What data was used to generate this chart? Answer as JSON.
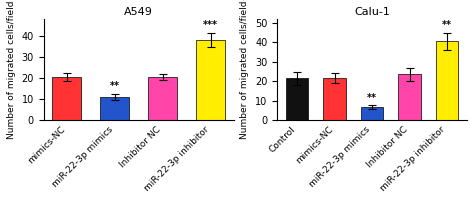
{
  "a549_title": "A549",
  "a549_categories": [
    "mimics-NC",
    "miR-22-3p mimics",
    "Inhibitor NC",
    "miR-22-3p inhibitor"
  ],
  "a549_values": [
    20.5,
    11.0,
    20.5,
    38.0
  ],
  "a549_errors": [
    2.0,
    1.5,
    1.5,
    3.5
  ],
  "a549_colors": [
    "#FF3333",
    "#2255CC",
    "#FF44AA",
    "#FFEE00"
  ],
  "a549_sig": [
    "",
    "**",
    "",
    "***"
  ],
  "a549_ylabel": "Number of migrated cells/field",
  "a549_ylim": [
    0,
    48
  ],
  "a549_yticks": [
    0,
    10,
    20,
    30,
    40
  ],
  "calu1_title": "Calu-1",
  "calu1_categories": [
    "Control",
    "mimics-NC",
    "miR-22-3p mimics",
    "Inhibitor NC",
    "miR-22-3p inhibitor"
  ],
  "calu1_values": [
    21.5,
    21.5,
    6.5,
    23.5,
    40.5
  ],
  "calu1_errors": [
    3.5,
    2.5,
    1.0,
    3.5,
    4.5
  ],
  "calu1_colors": [
    "#111111",
    "#FF3333",
    "#2255CC",
    "#FF44AA",
    "#FFEE00"
  ],
  "calu1_sig": [
    "",
    "",
    "**",
    "",
    "**"
  ],
  "calu1_ylabel": "Number of migrated cells/field",
  "calu1_ylim": [
    0,
    52
  ],
  "calu1_yticks": [
    0,
    10,
    20,
    30,
    40,
    50
  ],
  "fig_width": 4.74,
  "fig_height": 2.0,
  "dpi": 100
}
